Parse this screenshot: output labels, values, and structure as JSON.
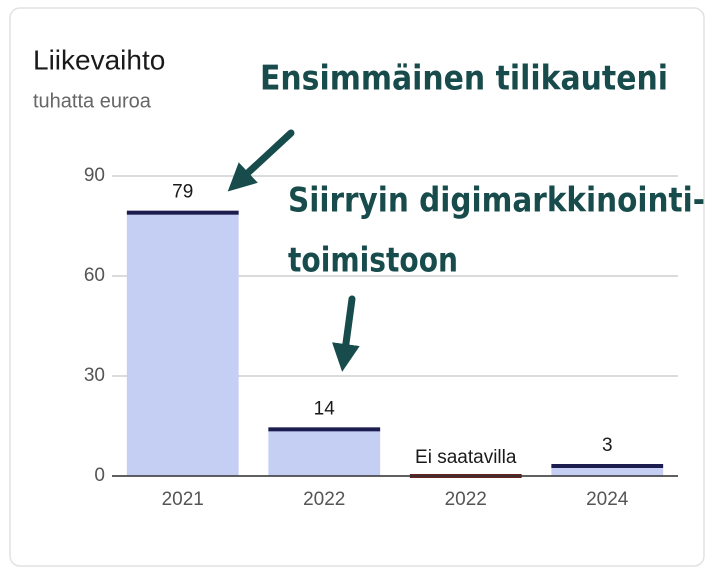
{
  "chart_data": {
    "type": "bar",
    "title": "Liikevaihto",
    "subtitle": "tuhatta euroa",
    "categories": [
      "2021",
      "2022",
      "2022",
      "2024"
    ],
    "values": [
      79,
      14,
      null,
      3
    ],
    "value_labels": [
      "79",
      "14",
      "Ei saatavilla",
      "3"
    ],
    "color": "#c5cef3",
    "cap_color": "#1c1c4e",
    "missing_color": "#6b2222",
    "ylim": [
      0,
      90
    ],
    "yticks": [
      0,
      30,
      60,
      90
    ],
    "grid": true,
    "annotations": [
      {
        "lines": [
          "Ensimmäinen tilikauteni"
        ]
      },
      {
        "lines": [
          "Siirryin digimarkkinointi-",
          "toimistoon"
        ]
      }
    ]
  }
}
